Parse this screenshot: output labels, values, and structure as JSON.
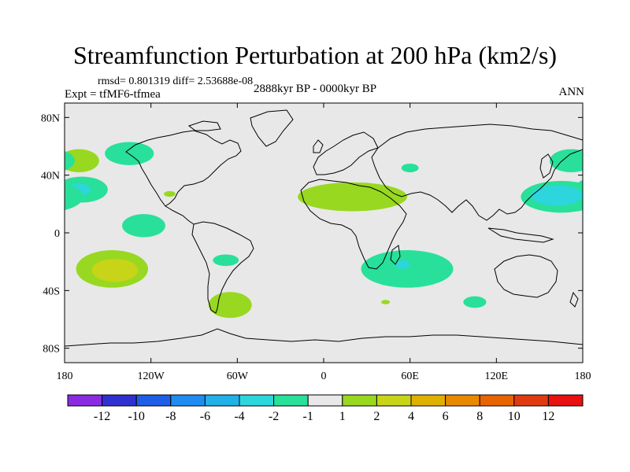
{
  "chart_data": {
    "type": "contour_map",
    "title": "Streamfunction Perturbation at 200 hPa (km2/s)",
    "stats_text": "rmsd= 0.801319 diff= 2.53688e-08",
    "left_subtitle": "Expt = tfMF6-tfmea",
    "center_subtitle": "2888kyr BP - 0000kyr BP",
    "right_subtitle": "ANN",
    "lon_range": [
      -180,
      180
    ],
    "lat_range": [
      -90,
      90
    ],
    "x_ticks": [
      {
        "value": -180,
        "label": "180"
      },
      {
        "value": -120,
        "label": "120W"
      },
      {
        "value": -60,
        "label": "60W"
      },
      {
        "value": 0,
        "label": "0"
      },
      {
        "value": 60,
        "label": "60E"
      },
      {
        "value": 120,
        "label": "120E"
      },
      {
        "value": 180,
        "label": "180"
      }
    ],
    "y_ticks": [
      {
        "value": 80,
        "label": "80N"
      },
      {
        "value": 40,
        "label": "40N"
      },
      {
        "value": 0,
        "label": "0"
      },
      {
        "value": -40,
        "label": "40S"
      },
      {
        "value": -80,
        "label": "80S"
      }
    ],
    "levels": [
      -12,
      -10,
      -8,
      -6,
      -4,
      -2,
      -1,
      1,
      2,
      4,
      6,
      8,
      10,
      12
    ],
    "colorbar_labels": [
      "-12",
      "-10",
      "-8",
      "-6",
      "-4",
      "-2",
      "-1",
      "1",
      "2",
      "4",
      "6",
      "8",
      "10",
      "12"
    ],
    "colors": [
      "#8a2be2",
      "#3030d0",
      "#1e5ee6",
      "#1e8cf0",
      "#22b0e8",
      "#2cd6dc",
      "#28e09a",
      "#e8e8e8",
      "#98d820",
      "#c8d418",
      "#e0b000",
      "#e88a00",
      "#e86400",
      "#e03a10",
      "#e81010"
    ],
    "anomalies": [
      {
        "name": "n-pacific-west",
        "lon": -170,
        "lat": 50,
        "rlon": 14,
        "rlat": 8,
        "value": 1.5
      },
      {
        "name": "n-pacific-east",
        "lon": -135,
        "lat": 55,
        "rlon": 17,
        "rlat": 8,
        "value": -1.5
      },
      {
        "name": "ne-pacific-west",
        "lon": -168,
        "lat": 30,
        "rlon": 18,
        "rlat": 9,
        "value": -1.5
      },
      {
        "name": "ne-pacific-west-core",
        "lon": -170,
        "lat": 30,
        "rlon": 8,
        "rlat": 4,
        "value": -2.5
      },
      {
        "name": "mexico-small",
        "lon": -107,
        "lat": 27,
        "rlon": 4,
        "rlat": 2,
        "value": 1.5
      },
      {
        "name": "c-pacific",
        "lon": -125,
        "lat": 5,
        "rlon": 15,
        "rlat": 8,
        "value": -1.5
      },
      {
        "name": "s-pacific",
        "lon": -147,
        "lat": -25,
        "rlon": 25,
        "rlat": 13,
        "value": 1.5
      },
      {
        "name": "s-pacific-core",
        "lon": -145,
        "lat": -26,
        "rlon": 16,
        "rlat": 8,
        "value": 3
      },
      {
        "name": "se-pacific",
        "lon": -68,
        "lat": -19,
        "rlon": 9,
        "rlat": 4,
        "value": -1.5
      },
      {
        "name": "s-america",
        "lon": -65,
        "lat": -50,
        "rlon": 15,
        "rlat": 9,
        "value": 1.5
      },
      {
        "name": "sahara",
        "lon": 20,
        "lat": 25,
        "rlon": 38,
        "rlat": 10,
        "value": 1.5
      },
      {
        "name": "caspian",
        "lon": 60,
        "lat": 45,
        "rlon": 6,
        "rlat": 3,
        "value": -1.5
      },
      {
        "name": "s-indian",
        "lon": 58,
        "lat": -25,
        "rlon": 32,
        "rlat": 13,
        "value": -1.5
      },
      {
        "name": "s-indian-core",
        "lon": 55,
        "lat": -22,
        "rlon": 5,
        "rlat": 3,
        "value": -2.5
      },
      {
        "name": "w-australia",
        "lon": 105,
        "lat": -48,
        "rlon": 8,
        "rlat": 4,
        "value": -1.5
      },
      {
        "name": "s-atlantic-dot",
        "lon": 43,
        "lat": -48,
        "rlon": 3,
        "rlat": 1.5,
        "value": 1.5
      },
      {
        "name": "nw-pacific",
        "lon": 165,
        "lat": 25,
        "rlon": 28,
        "rlat": 11,
        "value": -1.5
      },
      {
        "name": "nw-pacific-core",
        "lon": 162,
        "lat": 26,
        "rlon": 18,
        "rlat": 7,
        "value": -2.5
      },
      {
        "name": "ne-asia",
        "lon": 172,
        "lat": 50,
        "rlon": 15,
        "rlat": 8,
        "value": -1.5
      }
    ]
  }
}
